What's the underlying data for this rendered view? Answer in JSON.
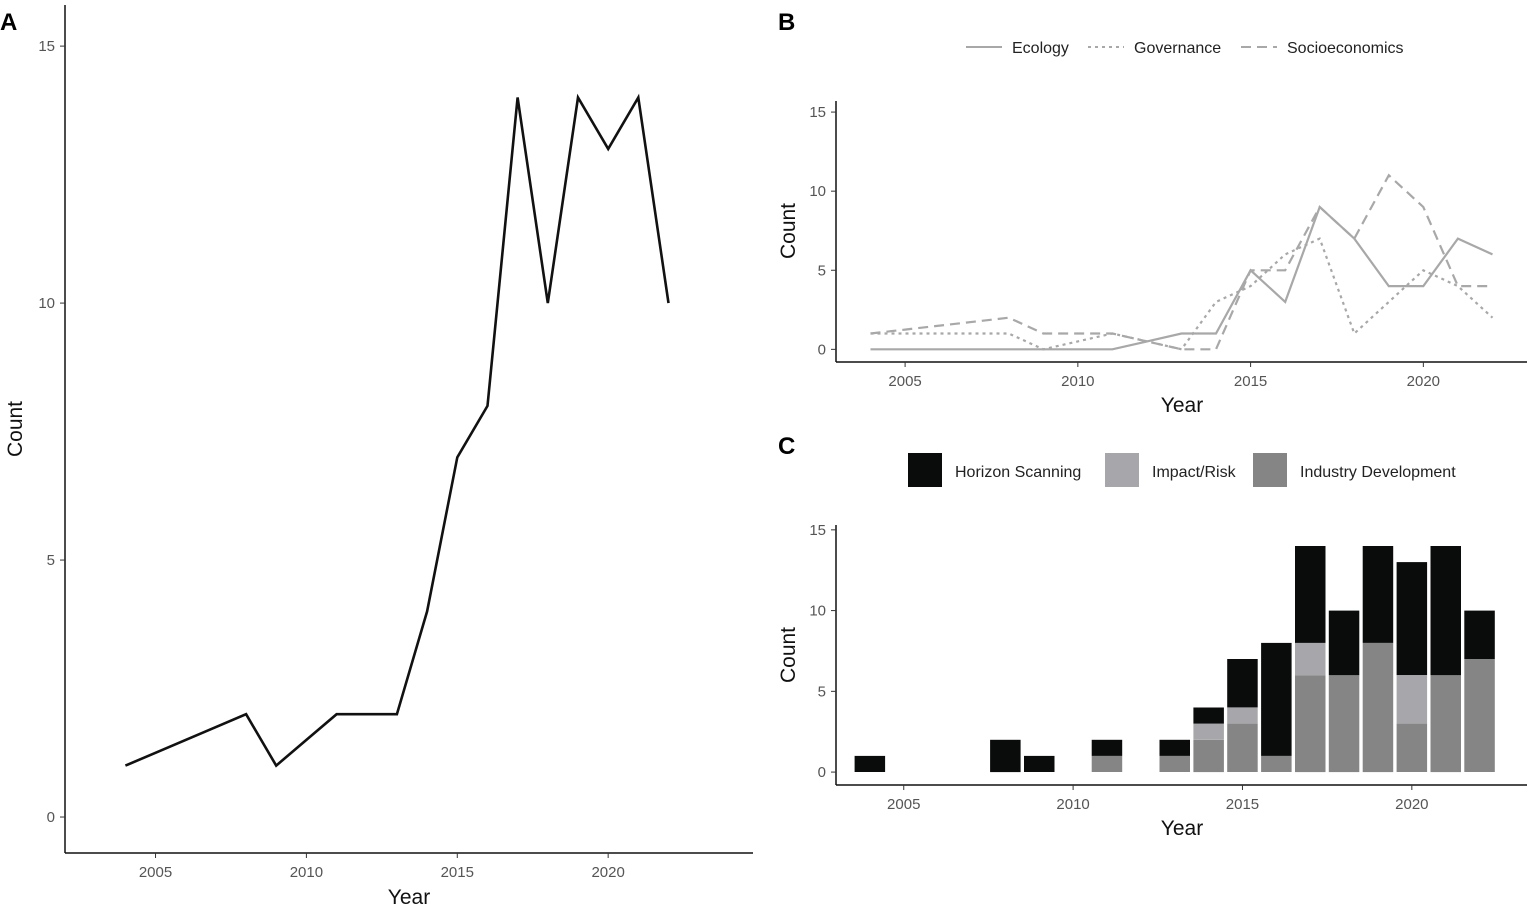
{
  "chart_data": [
    {
      "panel": "A",
      "type": "line",
      "xlabel": "Year",
      "ylabel": "Count",
      "x": [
        2004,
        2005,
        2006,
        2007,
        2008,
        2009,
        2010,
        2011,
        2012,
        2013,
        2014,
        2015,
        2016,
        2017,
        2018,
        2019,
        2020,
        2021,
        2022
      ],
      "series": [
        {
          "values": [
            1,
            1.25,
            1.5,
            1.75,
            2,
            1,
            1.5,
            2,
            2,
            2,
            4,
            7,
            8,
            14,
            10,
            14,
            13,
            14,
            10
          ],
          "color": "#111111"
        }
      ],
      "xticks": [
        2005,
        2010,
        2015,
        2020
      ],
      "yticks": [
        0,
        5,
        10,
        15
      ],
      "xlim": [
        2002,
        2024.8
      ],
      "ylim": [
        -0.7,
        15.8
      ]
    },
    {
      "panel": "B",
      "type": "line",
      "xlabel": "Year",
      "ylabel": "Count",
      "legend_position": "top",
      "x": [
        2004,
        2005,
        2006,
        2007,
        2008,
        2009,
        2010,
        2011,
        2012,
        2013,
        2014,
        2015,
        2016,
        2017,
        2018,
        2019,
        2020,
        2021,
        2022
      ],
      "series": [
        {
          "name": "Ecology",
          "dash": "solid",
          "color": "#a8a8a8",
          "values": [
            0,
            0,
            0,
            0,
            0,
            0,
            0,
            0,
            0.5,
            1,
            1,
            5,
            3,
            9,
            7,
            4,
            4,
            7,
            6
          ]
        },
        {
          "name": "Governance",
          "dash": "dotted",
          "color": "#a8a8a8",
          "values": [
            1,
            1,
            1,
            1,
            1,
            0,
            0.5,
            1,
            0.5,
            0,
            3,
            4,
            6,
            7,
            1,
            3,
            5,
            4,
            2
          ]
        },
        {
          "name": "Socioeconomics",
          "dash": "dashed",
          "color": "#a8a8a8",
          "values": [
            1,
            1.25,
            1.5,
            1.75,
            2,
            1,
            1,
            1,
            0.5,
            0,
            0,
            5,
            5,
            9,
            7,
            11,
            9,
            4,
            4
          ]
        }
      ],
      "xticks": [
        2005,
        2010,
        2015,
        2020
      ],
      "yticks": [
        0,
        5,
        10,
        15
      ],
      "xlim": [
        2003,
        2023
      ],
      "ylim": [
        -0.8,
        15.7
      ]
    },
    {
      "panel": "C",
      "type": "bar",
      "stacked": true,
      "xlabel": "Year",
      "ylabel": "Count",
      "legend_position": "top",
      "categories": [
        2004,
        2008,
        2009,
        2011,
        2013,
        2014,
        2015,
        2016,
        2017,
        2018,
        2019,
        2020,
        2021,
        2022
      ],
      "series": [
        {
          "name": "Industry Development",
          "color": "#858585",
          "values": [
            0,
            0,
            0,
            1,
            1,
            2,
            3,
            1,
            6,
            6,
            8,
            3,
            6,
            7
          ]
        },
        {
          "name": "Impact/Risk",
          "color": "#a7a6ab",
          "values": [
            0,
            0,
            0,
            0,
            0,
            1,
            1,
            0,
            2,
            0,
            0,
            3,
            0,
            0
          ]
        },
        {
          "name": "Horizon Scanning",
          "color": "#0a0c0c",
          "values": [
            1,
            2,
            1,
            1,
            1,
            1,
            3,
            7,
            6,
            4,
            6,
            7,
            8,
            3
          ]
        }
      ],
      "legend_order": [
        "Horizon Scanning",
        "Impact/Risk",
        "Industry Development"
      ],
      "xticks": [
        2005,
        2010,
        2015,
        2020
      ],
      "yticks": [
        0,
        5,
        10,
        15
      ],
      "xlim": [
        2003,
        2023.4
      ],
      "ylim": [
        -0.8,
        15.3
      ]
    }
  ],
  "panels": {
    "A": {
      "letter": "A"
    },
    "B": {
      "letter": "B"
    },
    "C": {
      "letter": "C"
    }
  }
}
